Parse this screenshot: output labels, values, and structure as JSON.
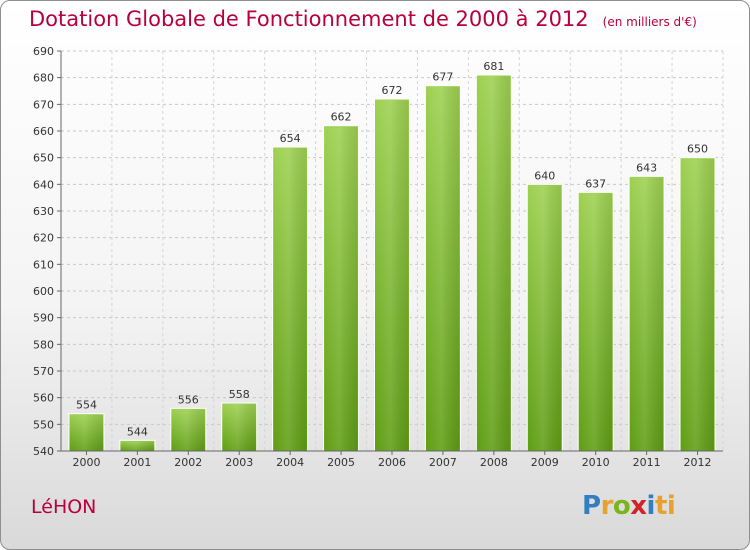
{
  "chart_data": {
    "type": "bar",
    "title": "Dotation Globale de Fonctionnement de 2000 à 2012",
    "unit_label": "(en milliers d'€)",
    "categories": [
      "2000",
      "2001",
      "2002",
      "2003",
      "2004",
      "2005",
      "2006",
      "2007",
      "2008",
      "2009",
      "2010",
      "2011",
      "2012"
    ],
    "values": [
      554,
      544,
      556,
      558,
      654,
      662,
      672,
      677,
      681,
      640,
      637,
      643,
      650
    ],
    "ylim": [
      540,
      690
    ],
    "yticks": [
      540,
      550,
      560,
      570,
      580,
      590,
      600,
      610,
      620,
      630,
      640,
      650,
      660,
      670,
      680,
      690
    ],
    "xlabel": "",
    "ylabel": "",
    "grid": true,
    "bar_color": "#8cc63f"
  },
  "commune": "LéHON",
  "brand": {
    "letters": [
      "P",
      "r",
      "o",
      "x",
      "i",
      "ti"
    ],
    "text": "Proxiti"
  }
}
